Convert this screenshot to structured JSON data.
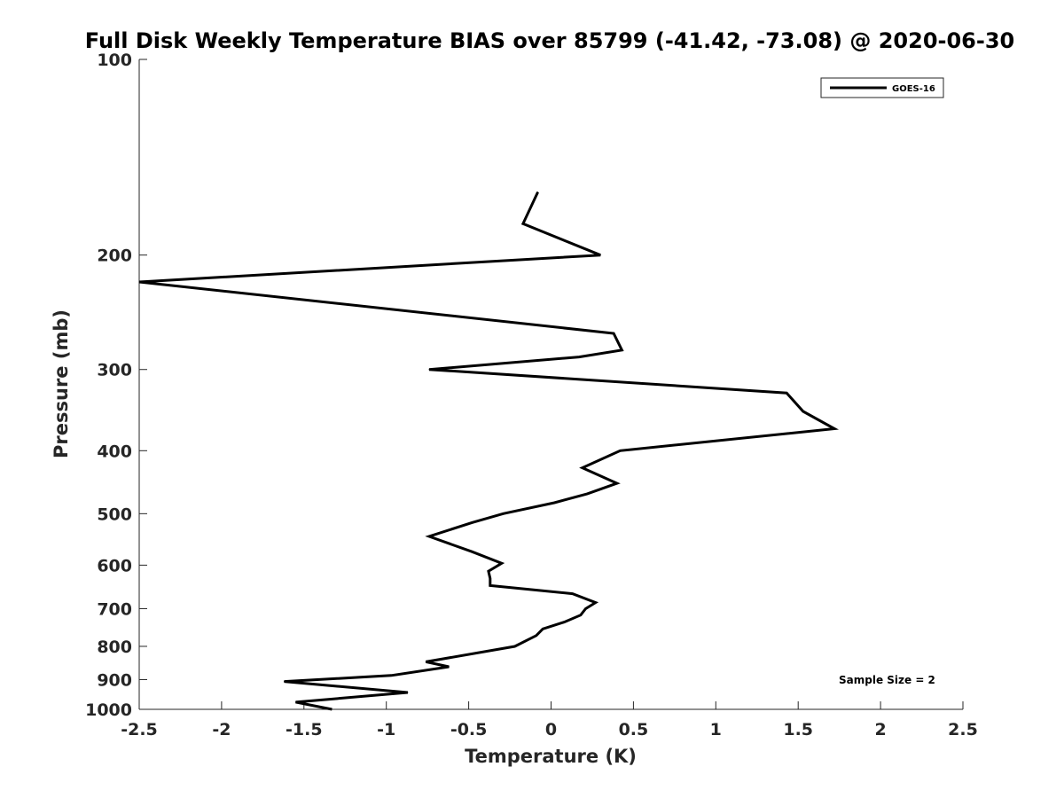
{
  "chart_data": {
    "type": "line",
    "title": "Full Disk Weekly Temperature BIAS over 85799 (-41.42, -73.08) @ 2020-06-30",
    "xlabel": "Temperature (K)",
    "ylabel": "Pressure (mb)",
    "xlim": [
      -2.5,
      2.5
    ],
    "ylim": [
      100,
      1000
    ],
    "y_scale": "log",
    "y_reversed": true,
    "xticks": [
      -2.5,
      -2,
      -1.5,
      -1,
      -0.5,
      0,
      0.5,
      1,
      1.5,
      2,
      2.5
    ],
    "xtick_labels": [
      "-2.5",
      "-2",
      "-1.5",
      "-1",
      "-0.5",
      "0",
      "0.5",
      "1",
      "1.5",
      "2",
      "2.5"
    ],
    "yticks": [
      100,
      200,
      300,
      400,
      500,
      600,
      700,
      800,
      900,
      1000
    ],
    "ytick_labels": [
      "100",
      "200",
      "300",
      "400",
      "500",
      "600",
      "700",
      "800",
      "900",
      "1000"
    ],
    "grid": false,
    "legend_position": "top-right",
    "annotation": "Sample Size = 2",
    "series": [
      {
        "name": "GOES-16",
        "color": "#000000",
        "points": [
          {
            "x": -0.08,
            "p": 160
          },
          {
            "x": -0.17,
            "p": 179
          },
          {
            "x": 0.3,
            "p": 200
          },
          {
            "x": -2.5,
            "p": 220
          },
          {
            "x": 0.38,
            "p": 264
          },
          {
            "x": 0.43,
            "p": 280
          },
          {
            "x": 0.17,
            "p": 287
          },
          {
            "x": -0.74,
            "p": 300
          },
          {
            "x": 1.43,
            "p": 326
          },
          {
            "x": 1.53,
            "p": 348
          },
          {
            "x": 1.72,
            "p": 370
          },
          {
            "x": 0.42,
            "p": 400
          },
          {
            "x": 0.19,
            "p": 425
          },
          {
            "x": 0.4,
            "p": 449
          },
          {
            "x": 0.22,
            "p": 466
          },
          {
            "x": 0.02,
            "p": 481
          },
          {
            "x": -0.29,
            "p": 500
          },
          {
            "x": -0.48,
            "p": 516
          },
          {
            "x": -0.74,
            "p": 542
          },
          {
            "x": -0.48,
            "p": 572
          },
          {
            "x": -0.3,
            "p": 596
          },
          {
            "x": -0.38,
            "p": 613
          },
          {
            "x": -0.37,
            "p": 629
          },
          {
            "x": -0.37,
            "p": 645
          },
          {
            "x": 0.13,
            "p": 664
          },
          {
            "x": 0.27,
            "p": 685
          },
          {
            "x": 0.21,
            "p": 700
          },
          {
            "x": 0.18,
            "p": 716
          },
          {
            "x": 0.08,
            "p": 734
          },
          {
            "x": -0.05,
            "p": 752
          },
          {
            "x": -0.09,
            "p": 770
          },
          {
            "x": -0.22,
            "p": 800
          },
          {
            "x": -0.76,
            "p": 845
          },
          {
            "x": -0.62,
            "p": 860
          },
          {
            "x": -0.97,
            "p": 887
          },
          {
            "x": -1.62,
            "p": 906
          },
          {
            "x": -0.87,
            "p": 942
          },
          {
            "x": -1.55,
            "p": 975
          },
          {
            "x": -1.33,
            "p": 1000
          }
        ]
      }
    ]
  }
}
